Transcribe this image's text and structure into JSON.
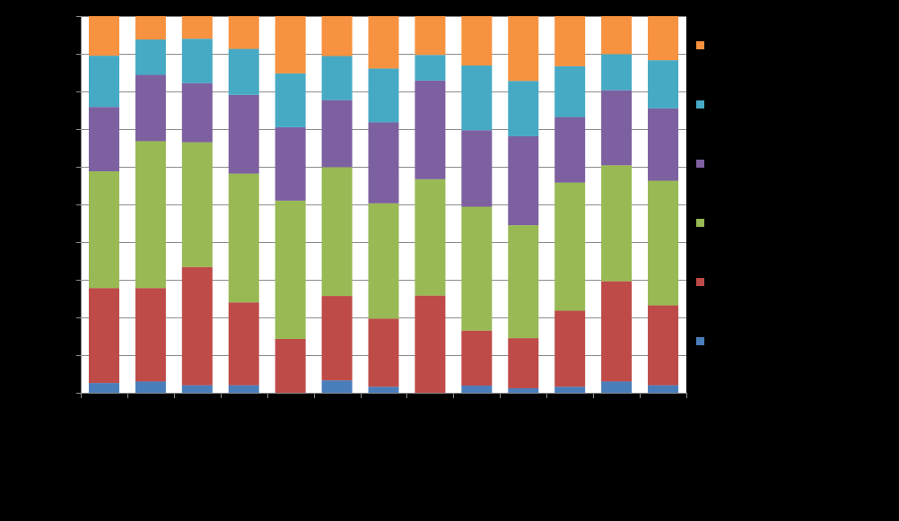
{
  "chart_data": {
    "type": "bar",
    "stacked": true,
    "percent_stacked": true,
    "title": "",
    "xlabel": "",
    "ylabel": "",
    "ylim": [
      0,
      100
    ],
    "grid": true,
    "legend_position": "right",
    "categories": [
      "",
      "",
      "",
      "",
      "",
      "",
      "",
      "",
      "",
      "",
      "",
      "",
      ""
    ],
    "series": [
      {
        "color": "#4a7ebb",
        "values": [
          2.6,
          3.0,
          2.0,
          2.0,
          0.0,
          3.3,
          1.6,
          0.0,
          1.9,
          1.2,
          1.6,
          3.0,
          2.0
        ]
      },
      {
        "color": "#be4b48",
        "values": [
          25.2,
          24.8,
          31.4,
          22.0,
          14.3,
          22.4,
          18.1,
          25.8,
          14.6,
          13.3,
          20.2,
          26.6,
          21.2
        ]
      },
      {
        "color": "#98b954",
        "values": [
          31.0,
          39.0,
          33.1,
          34.2,
          36.7,
          34.2,
          30.6,
          30.9,
          32.9,
          30.0,
          34.0,
          30.8,
          33.1
        ]
      },
      {
        "color": "#7d60a0",
        "values": [
          17.1,
          17.6,
          15.7,
          20.9,
          19.5,
          17.8,
          21.5,
          26.2,
          20.3,
          23.6,
          17.4,
          19.9,
          19.2
        ]
      },
      {
        "color": "#46aac5",
        "values": [
          13.6,
          9.4,
          11.8,
          12.2,
          14.3,
          11.7,
          14.3,
          6.8,
          17.2,
          14.7,
          13.5,
          9.6,
          12.8
        ]
      },
      {
        "color": "#f69240",
        "values": [
          10.5,
          6.2,
          6.0,
          8.7,
          15.2,
          10.6,
          13.9,
          10.3,
          13.1,
          17.2,
          13.3,
          10.1,
          11.7
        ]
      }
    ]
  }
}
